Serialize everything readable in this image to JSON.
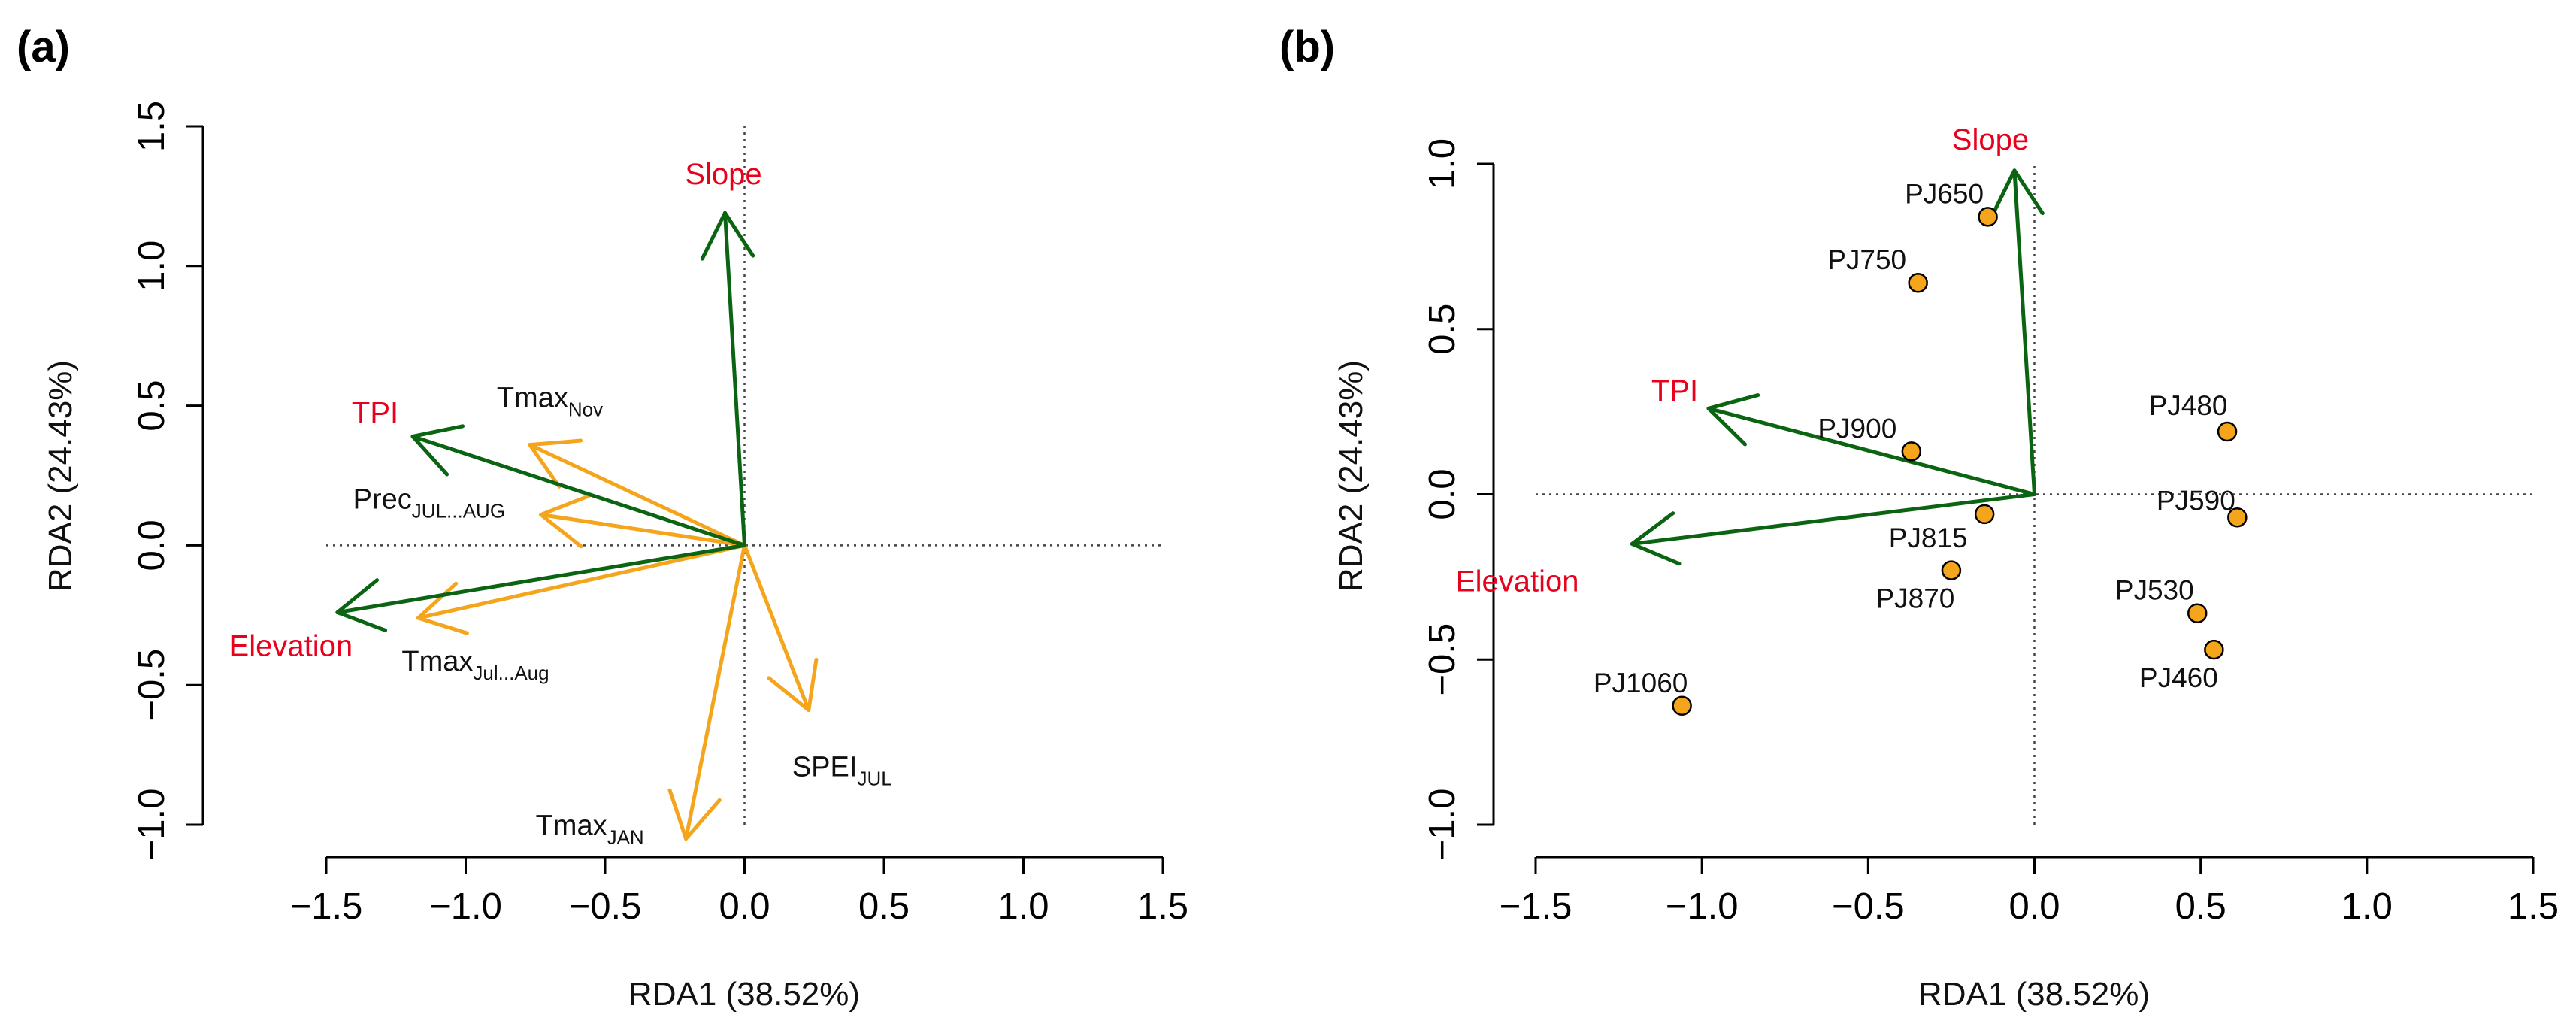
{
  "chart_data": [
    {
      "type": "scatter",
      "panel_label": "(a)",
      "title": "",
      "xlabel": "RDA1 (38.52%)",
      "ylabel": "RDA2 (24.43%)",
      "xlim": [
        -1.5,
        1.5
      ],
      "ylim": [
        -1.0,
        1.5
      ],
      "xticks": [
        -1.5,
        -1.0,
        -0.5,
        0.0,
        0.5,
        1.0,
        1.5
      ],
      "xtick_labels": [
        "−1.5",
        "−1.0",
        "−0.5",
        "0.0",
        "0.5",
        "1.0",
        "1.5"
      ],
      "yticks": [
        -1.0,
        -0.5,
        0.0,
        0.5,
        1.0,
        1.5
      ],
      "ytick_labels": [
        "−1.0",
        "−0.5",
        "0.0",
        "0.5",
        "1.0",
        "1.5"
      ],
      "grid": false,
      "constraint_color": "#0a6412",
      "variable_color": "#f5a51c",
      "label_color": "#e8001c",
      "constraints": [
        {
          "name": "Slope",
          "x": -0.07,
          "y": 1.19
        },
        {
          "name": "TPI",
          "x": -1.19,
          "y": 0.39
        },
        {
          "name": "Elevation",
          "x": -1.46,
          "y": -0.24
        }
      ],
      "variables": [
        {
          "main": "Tmax",
          "sub": "Nov",
          "x": -0.77,
          "y": 0.36
        },
        {
          "main": "Prec",
          "sub": "JUL...AUG",
          "x": -0.73,
          "y": 0.11
        },
        {
          "main": "Tmax",
          "sub": "Jul...Aug",
          "x": -1.17,
          "y": -0.26
        },
        {
          "main": "SPEI",
          "sub": "JUL",
          "x": 0.23,
          "y": -0.59
        },
        {
          "main": "Tmax",
          "sub": "JAN",
          "x": -0.21,
          "y": -1.05
        }
      ]
    },
    {
      "type": "scatter",
      "panel_label": "(b)",
      "title": "",
      "xlabel": "RDA1 (38.52%)",
      "ylabel": "RDA2 (24.43%)",
      "xlim": [
        -1.5,
        1.5
      ],
      "ylim": [
        -1.0,
        1.0
      ],
      "xticks": [
        -1.5,
        -1.0,
        -0.5,
        0.0,
        0.5,
        1.0,
        1.5
      ],
      "xtick_labels": [
        "−1.5",
        "−1.0",
        "−0.5",
        "0.0",
        "0.5",
        "1.0",
        "1.5"
      ],
      "yticks": [
        -1.0,
        -0.5,
        0.0,
        0.5,
        1.0
      ],
      "ytick_labels": [
        "−1.0",
        "−0.5",
        "0.0",
        "0.5",
        "1.0"
      ],
      "grid": false,
      "constraint_color": "#0a6412",
      "point_color": "#f5a51c",
      "label_color": "#e8001c",
      "constraints": [
        {
          "name": "Slope",
          "x": -0.06,
          "y": 0.98
        },
        {
          "name": "TPI",
          "x": -0.98,
          "y": 0.26
        },
        {
          "name": "Elevation",
          "x": -1.21,
          "y": -0.15
        }
      ],
      "sites": [
        {
          "name": "PJ650",
          "x": -0.14,
          "y": 0.84
        },
        {
          "name": "PJ750",
          "x": -0.35,
          "y": 0.64
        },
        {
          "name": "PJ900",
          "x": -0.37,
          "y": 0.13
        },
        {
          "name": "PJ815",
          "x": -0.15,
          "y": -0.06
        },
        {
          "name": "PJ870",
          "x": -0.25,
          "y": -0.23
        },
        {
          "name": "PJ1060",
          "x": -1.06,
          "y": -0.64
        },
        {
          "name": "PJ480",
          "x": 0.58,
          "y": 0.19
        },
        {
          "name": "PJ590",
          "x": 0.61,
          "y": -0.07
        },
        {
          "name": "PJ530",
          "x": 0.49,
          "y": -0.36
        },
        {
          "name": "PJ460",
          "x": 0.54,
          "y": -0.47
        }
      ]
    }
  ]
}
